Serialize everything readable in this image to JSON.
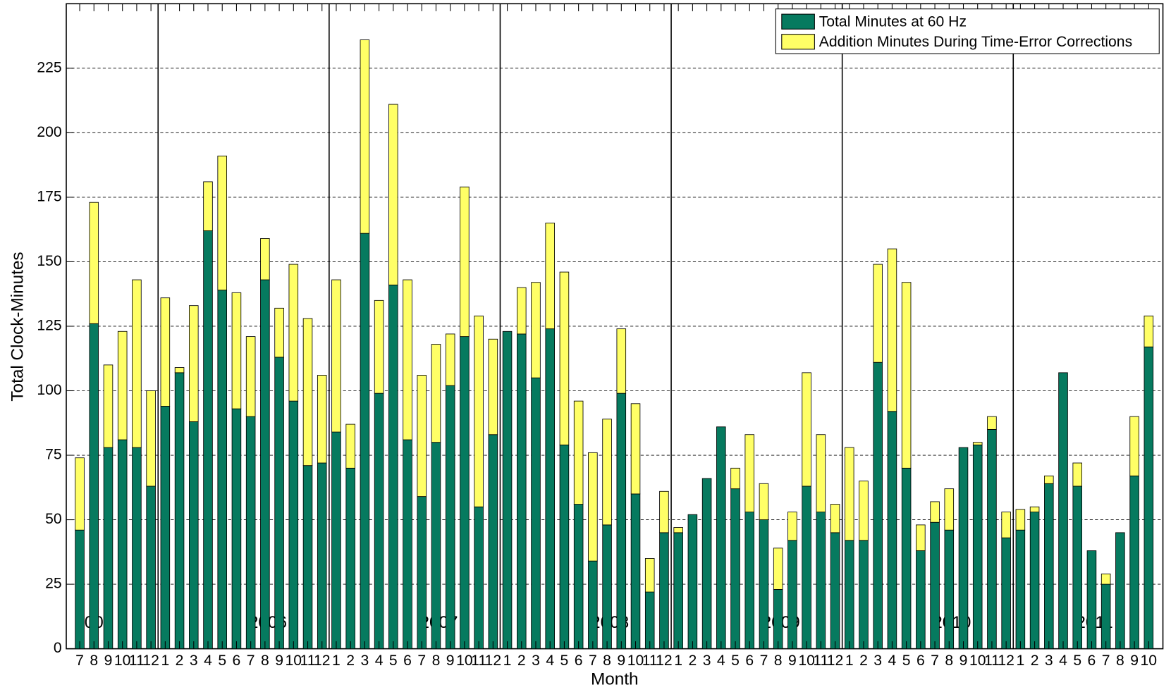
{
  "chart_data": {
    "type": "stacked-bar",
    "xlabel": "Month",
    "ylabel": "Total Clock-Minutes",
    "categories": [
      "7",
      "8",
      "9",
      "10",
      "11",
      "12",
      "1",
      "2",
      "3",
      "4",
      "5",
      "6",
      "7",
      "8",
      "9",
      "10",
      "11",
      "12",
      "1",
      "2",
      "3",
      "4",
      "5",
      "6",
      "7",
      "8",
      "9",
      "10",
      "11",
      "12",
      "1",
      "2",
      "3",
      "4",
      "5",
      "6",
      "7",
      "8",
      "9",
      "10",
      "11",
      "12",
      "1",
      "2",
      "3",
      "4",
      "5",
      "6",
      "7",
      "8",
      "9",
      "10",
      "11",
      "12",
      "1",
      "2",
      "3",
      "4",
      "5",
      "6",
      "7",
      "8",
      "9",
      "10",
      "11",
      "12",
      "1",
      "2",
      "3",
      "4",
      "5",
      "6",
      "7",
      "8",
      "9",
      "10"
    ],
    "year_labels": [
      "2005",
      "2006",
      "2007",
      "2008",
      "2009",
      "2010",
      "2011"
    ],
    "series": [
      {
        "name": "Total Minutes at 60 Hz",
        "color": "#067a5f",
        "values": [
          46,
          126,
          78,
          81,
          78,
          63,
          94,
          107,
          88,
          162,
          139,
          93,
          90,
          143,
          113,
          96,
          71,
          72,
          84,
          70,
          161,
          99,
          141,
          81,
          59,
          80,
          102,
          121,
          55,
          83,
          123,
          122,
          105,
          124,
          79,
          56,
          34,
          48,
          99,
          60,
          22,
          45,
          45,
          52,
          66,
          86,
          62,
          53,
          50,
          23,
          42,
          63,
          53,
          45,
          42,
          42,
          111,
          92,
          70,
          38,
          49,
          46,
          78,
          79,
          85,
          43,
          46,
          53,
          64,
          107,
          63,
          38,
          25,
          45,
          67,
          117
        ]
      },
      {
        "name": "Addition Minutes During Time-Error Corrections",
        "color": "#ffff66",
        "values": [
          28,
          47,
          32,
          42,
          65,
          37,
          42,
          2,
          45,
          19,
          52,
          45,
          31,
          16,
          19,
          53,
          57,
          34,
          59,
          17,
          75,
          36,
          70,
          62,
          47,
          38,
          20,
          58,
          74,
          37,
          0,
          18,
          37,
          41,
          67,
          40,
          42,
          41,
          25,
          35,
          13,
          16,
          2,
          0,
          0,
          0,
          8,
          30,
          14,
          16,
          11,
          44,
          30,
          11,
          36,
          23,
          38,
          63,
          72,
          10,
          8,
          16,
          0,
          1,
          5,
          10,
          8,
          2,
          3,
          0,
          9,
          0,
          4,
          0,
          23,
          12
        ]
      }
    ],
    "ylim": [
      0,
      250
    ],
    "yticks": [
      0,
      25,
      50,
      75,
      100,
      125,
      150,
      175,
      200,
      225
    ],
    "grid": true,
    "legend": "upper right"
  }
}
